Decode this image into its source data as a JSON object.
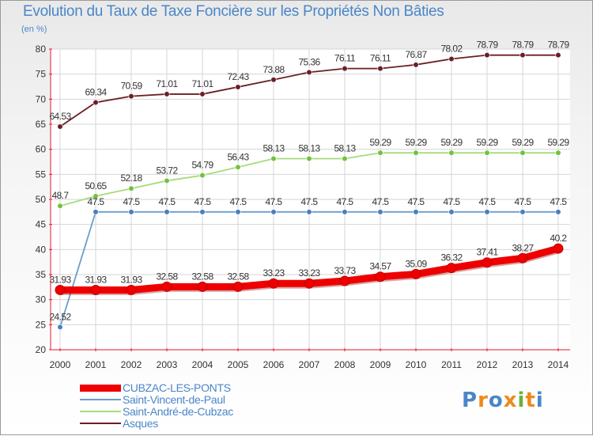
{
  "chart_data": {
    "type": "line",
    "title": "Evolution du Taux de Taxe Foncière sur les Propriétés Non Bâties",
    "unit": "(en %)",
    "ylim": [
      20,
      80
    ],
    "y_ticks": [
      "20",
      "25",
      "30",
      "35",
      "40",
      "45",
      "50",
      "55",
      "60",
      "65",
      "70",
      "75",
      "80"
    ],
    "categories": [
      "2000",
      "2001",
      "2002",
      "2003",
      "2004",
      "2005",
      "2006",
      "2007",
      "2008",
      "2009",
      "2010",
      "2011",
      "2012",
      "2013",
      "2014"
    ],
    "grid": true,
    "legend_position": "bottom-left",
    "series": [
      {
        "name": "Asques",
        "color": "#6b1f23",
        "marker_color": "#6b1f23",
        "values": [
          64.53,
          69.34,
          70.59,
          71.01,
          71.01,
          72.43,
          73.88,
          75.36,
          76.11,
          76.11,
          76.87,
          78.02,
          78.79,
          78.79,
          78.79
        ],
        "labels": [
          "64.53",
          "69.34",
          "70.59",
          "71.01",
          "71.01",
          "72.43",
          "73.88",
          "75.36",
          "76.11",
          "76.11",
          "76.87",
          "78.02",
          "78.79",
          "78.79",
          "78.79"
        ]
      },
      {
        "name": "Saint-André-de-Cubzac",
        "color": "#a6dc7c",
        "marker_color": "#72c23e",
        "values": [
          48.7,
          50.65,
          52.18,
          53.72,
          54.79,
          56.43,
          58.13,
          58.13,
          58.13,
          59.29,
          59.29,
          59.29,
          59.29,
          59.29,
          59.29
        ],
        "labels": [
          "48.7",
          "50.65",
          "52.18",
          "53.72",
          "54.79",
          "56.43",
          "58.13",
          "58.13",
          "58.13",
          "59.29",
          "59.29",
          "59.29",
          "59.29",
          "59.29",
          "59.29"
        ]
      },
      {
        "name": "Saint-Vincent-de-Paul",
        "color": "#6b9dcc",
        "marker_color": "#4a7fbf",
        "values": [
          24.52,
          47.5,
          47.5,
          47.5,
          47.5,
          47.5,
          47.5,
          47.5,
          47.5,
          47.5,
          47.5,
          47.5,
          47.5,
          47.5,
          47.5
        ],
        "labels": [
          "24.52",
          "47.5",
          "47.5",
          "47.5",
          "47.5",
          "47.5",
          "47.5",
          "47.5",
          "47.5",
          "47.5",
          "47.5",
          "47.5",
          "47.5",
          "47.5",
          "47.5"
        ]
      },
      {
        "name": "CUBZAC-LES-PONTS",
        "color": "#ee0000",
        "marker_color": "#ee0000",
        "values": [
          31.93,
          31.93,
          31.93,
          32.58,
          32.58,
          32.58,
          33.23,
          33.23,
          33.73,
          34.57,
          35.09,
          36.32,
          37.41,
          38.27,
          40.2
        ],
        "labels": [
          "31.93",
          "31.93",
          "31.93",
          "32.58",
          "32.58",
          "32.58",
          "33.23",
          "33.23",
          "33.73",
          "34.57",
          "35.09",
          "36.32",
          "37.41",
          "38.27",
          "40.2"
        ]
      }
    ]
  },
  "legend": [
    {
      "label": "CUBZAC-LES-PONTS",
      "color": "#ee0000"
    },
    {
      "label": "Saint-Vincent-de-Paul",
      "color": "#6b9dcc"
    },
    {
      "label": "Saint-André-de-Cubzac",
      "color": "#a6dc7c"
    },
    {
      "label": "Asques",
      "color": "#6b1f23"
    }
  ],
  "logo": {
    "text": "Proxiti",
    "colors": [
      "#4a86c8",
      "#ee8a1c",
      "#4a86c8",
      "#ee8a1c",
      "#6ab03a",
      "#ee8a1c",
      "#4a86c8"
    ]
  }
}
